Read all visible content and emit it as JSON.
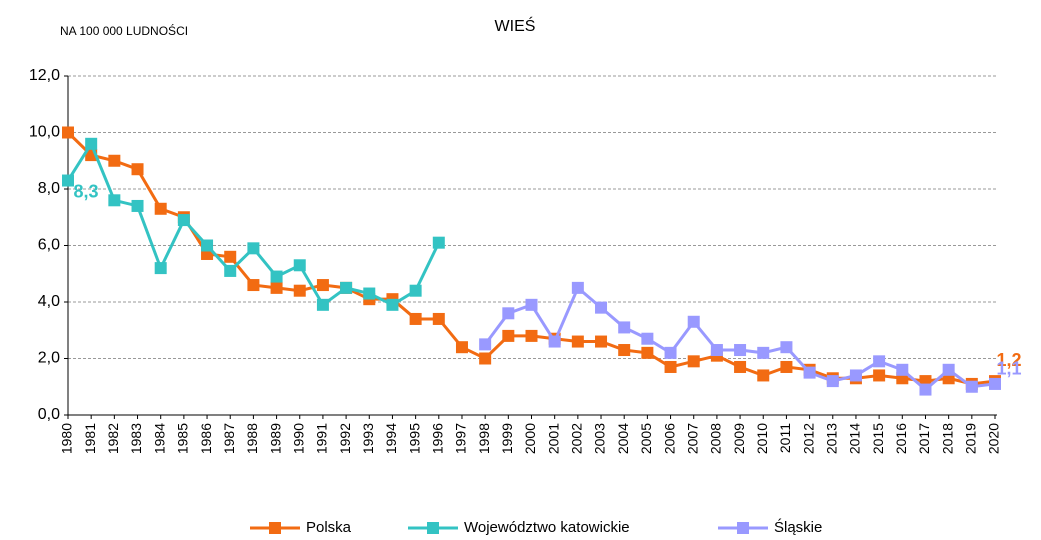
{
  "chart_data": {
    "type": "line",
    "title": "WIEŚ",
    "subtitle": "NA 100 000 LUDNOŚCI",
    "categories": [
      "1980",
      "1981",
      "1982",
      "1983",
      "1984",
      "1985",
      "1986",
      "1987",
      "1988",
      "1989",
      "1990",
      "1991",
      "1992",
      "1993",
      "1994",
      "1995",
      "1996",
      "1997",
      "1998",
      "1999",
      "2000",
      "2001",
      "2002",
      "2003",
      "2004",
      "2005",
      "2006",
      "2007",
      "2008",
      "2009",
      "2010",
      "2011",
      "2012",
      "2013",
      "2014",
      "2015",
      "2016",
      "2017",
      "2018",
      "2019",
      "2020"
    ],
    "series": [
      {
        "name": "Polska",
        "color": "#f26b12",
        "values": [
          10.0,
          9.2,
          9.0,
          8.7,
          7.3,
          7.0,
          5.7,
          5.6,
          4.6,
          4.5,
          4.4,
          4.6,
          4.5,
          4.1,
          4.1,
          3.4,
          3.4,
          2.4,
          2.0,
          2.8,
          2.8,
          2.7,
          2.6,
          2.6,
          2.3,
          2.2,
          1.7,
          1.9,
          2.1,
          1.7,
          1.4,
          1.7,
          1.6,
          1.3,
          1.3,
          1.4,
          1.3,
          1.2,
          1.3,
          1.1,
          1.2
        ],
        "value_labels": [
          null,
          null,
          null,
          null,
          null,
          null,
          null,
          null,
          null,
          null,
          null,
          null,
          null,
          null,
          null,
          null,
          null,
          null,
          null,
          null,
          null,
          null,
          null,
          null,
          null,
          null,
          null,
          null,
          null,
          null,
          null,
          null,
          null,
          null,
          null,
          null,
          null,
          null,
          null,
          null,
          "1,2"
        ]
      },
      {
        "name": "Województwo katowickie",
        "color": "#33c3c3",
        "values": [
          8.3,
          9.6,
          7.6,
          7.4,
          5.2,
          6.9,
          6.0,
          5.1,
          5.9,
          4.9,
          5.3,
          3.9,
          4.5,
          4.3,
          3.9,
          4.4,
          6.1,
          null,
          null,
          null,
          null,
          null,
          null,
          null,
          null,
          null,
          null,
          null,
          null,
          null,
          null,
          null,
          null,
          null,
          null,
          null,
          null,
          null,
          null,
          null,
          null
        ],
        "value_labels": [
          "8,3",
          null,
          null,
          null,
          null,
          null,
          null,
          null,
          null,
          null,
          null,
          null,
          null,
          null,
          null,
          null,
          null,
          null,
          null,
          null,
          null,
          null,
          null,
          null,
          null,
          null,
          null,
          null,
          null,
          null,
          null,
          null,
          null,
          null,
          null,
          null,
          null,
          null,
          null,
          null,
          null
        ]
      },
      {
        "name": "Śląskie",
        "color": "#9999ff",
        "values": [
          null,
          null,
          null,
          null,
          null,
          null,
          null,
          null,
          null,
          null,
          null,
          null,
          null,
          null,
          null,
          null,
          null,
          null,
          2.5,
          3.6,
          3.9,
          2.6,
          4.5,
          3.8,
          3.1,
          2.7,
          2.2,
          3.3,
          2.3,
          2.3,
          2.2,
          2.4,
          1.5,
          1.2,
          1.4,
          1.9,
          1.6,
          0.9,
          1.6,
          1.0,
          1.1
        ],
        "value_labels": [
          null,
          null,
          null,
          null,
          null,
          null,
          null,
          null,
          null,
          null,
          null,
          null,
          null,
          null,
          null,
          null,
          null,
          null,
          null,
          null,
          null,
          null,
          null,
          null,
          null,
          null,
          null,
          null,
          null,
          null,
          null,
          null,
          null,
          null,
          null,
          null,
          null,
          null,
          null,
          null,
          "1,1"
        ]
      }
    ],
    "ylim": [
      0,
      12
    ],
    "yticks": [
      {
        "value": 0,
        "label": "0,0"
      },
      {
        "value": 2,
        "label": "2,0"
      },
      {
        "value": 4,
        "label": "4,0"
      },
      {
        "value": 6,
        "label": "6,0"
      },
      {
        "value": 8,
        "label": "8,0"
      },
      {
        "value": 10,
        "label": "10,0"
      },
      {
        "value": 12,
        "label": "12,0"
      }
    ],
    "grid": true,
    "legend": "bottom"
  }
}
